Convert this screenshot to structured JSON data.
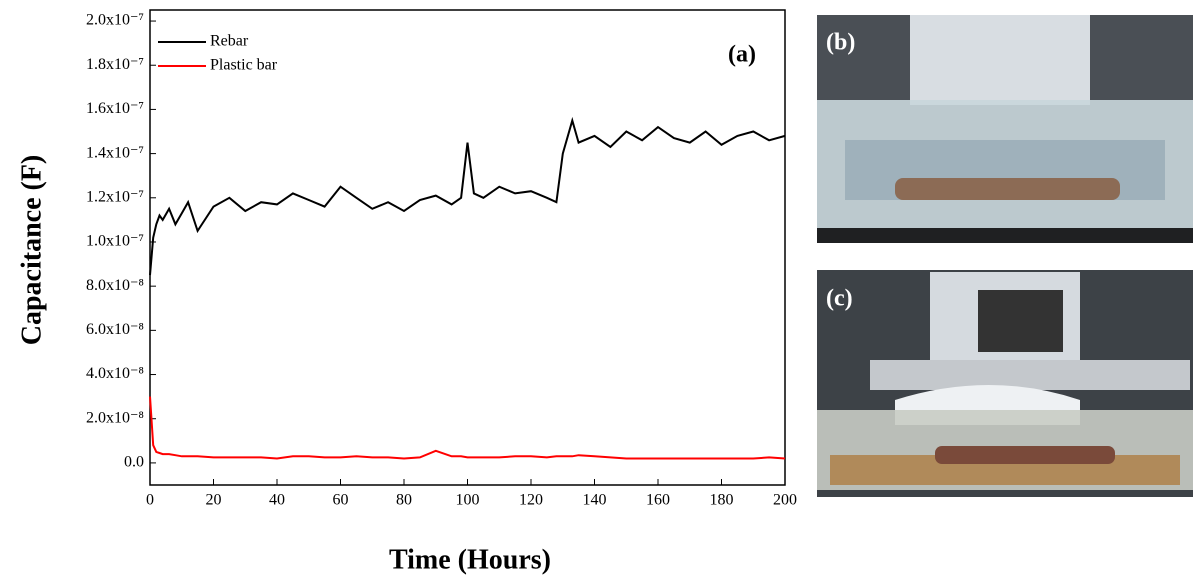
{
  "chart_data": {
    "type": "line",
    "panel_label": "(a)",
    "xlabel": "Time (Hours)",
    "ylabel": "Capacitance (F)",
    "x": [
      0,
      1,
      2,
      3,
      4,
      6,
      8,
      10,
      12,
      15,
      20,
      25,
      30,
      35,
      40,
      45,
      50,
      55,
      60,
      65,
      70,
      75,
      80,
      85,
      90,
      95,
      98,
      100,
      102,
      105,
      110,
      115,
      120,
      125,
      128,
      130,
      133,
      135,
      140,
      145,
      150,
      155,
      160,
      165,
      170,
      175,
      180,
      185,
      190,
      195,
      200
    ],
    "series": [
      {
        "name": "Rebar",
        "color": "#000000",
        "values": [
          8.5e-08,
          1.02e-07,
          1.08e-07,
          1.12e-07,
          1.1e-07,
          1.15e-07,
          1.08e-07,
          1.13e-07,
          1.18e-07,
          1.05e-07,
          1.16e-07,
          1.2e-07,
          1.14e-07,
          1.18e-07,
          1.17e-07,
          1.22e-07,
          1.19e-07,
          1.16e-07,
          1.25e-07,
          1.2e-07,
          1.15e-07,
          1.18e-07,
          1.14e-07,
          1.19e-07,
          1.21e-07,
          1.17e-07,
          1.2e-07,
          1.45e-07,
          1.22e-07,
          1.2e-07,
          1.25e-07,
          1.22e-07,
          1.23e-07,
          1.2e-07,
          1.18e-07,
          1.4e-07,
          1.55e-07,
          1.45e-07,
          1.48e-07,
          1.43e-07,
          1.5e-07,
          1.46e-07,
          1.52e-07,
          1.47e-07,
          1.45e-07,
          1.5e-07,
          1.44e-07,
          1.48e-07,
          1.5e-07,
          1.46e-07,
          1.48e-07
        ]
      },
      {
        "name": "Plastic bar",
        "color": "#ff0000",
        "values": [
          3e-08,
          8e-09,
          5e-09,
          4.5e-09,
          4e-09,
          4e-09,
          3.5e-09,
          3e-09,
          3e-09,
          3e-09,
          2.5e-09,
          2.5e-09,
          2.5e-09,
          2.5e-09,
          2e-09,
          3e-09,
          3e-09,
          2.5e-09,
          2.5e-09,
          3e-09,
          2.5e-09,
          2.5e-09,
          2e-09,
          2.5e-09,
          5.5e-09,
          3e-09,
          3e-09,
          2.5e-09,
          2.5e-09,
          2.5e-09,
          2.5e-09,
          3e-09,
          3e-09,
          2.5e-09,
          3e-09,
          3e-09,
          3e-09,
          3.5e-09,
          3e-09,
          2.5e-09,
          2e-09,
          2e-09,
          2e-09,
          2e-09,
          2e-09,
          2e-09,
          2e-09,
          2e-09,
          2e-09,
          2.5e-09,
          2e-09
        ]
      }
    ],
    "xlim": [
      0,
      200
    ],
    "xticks": [
      0,
      20,
      40,
      60,
      80,
      100,
      120,
      140,
      160,
      180,
      200
    ],
    "ylim": [
      -1e-08,
      2.05e-07
    ],
    "yticks": [
      {
        "value": 0,
        "label": "0.0"
      },
      {
        "value": 2e-08,
        "label": "2.0x10⁻⁸"
      },
      {
        "value": 4e-08,
        "label": "4.0x10⁻⁸"
      },
      {
        "value": 6e-08,
        "label": "6.0x10⁻⁸"
      },
      {
        "value": 8e-08,
        "label": "8.0x10⁻⁸"
      },
      {
        "value": 1e-07,
        "label": "1.0x10⁻⁷"
      },
      {
        "value": 1.2e-07,
        "label": "1.2x10⁻⁷"
      },
      {
        "value": 1.4e-07,
        "label": "1.4x10⁻⁷"
      },
      {
        "value": 1.6e-07,
        "label": "1.6x10⁻⁷"
      },
      {
        "value": 1.8e-07,
        "label": "1.8x10⁻⁷"
      },
      {
        "value": 2e-07,
        "label": "2.0x10⁻⁷"
      }
    ],
    "legend": "upper left",
    "photos": [
      "(b)",
      "(c)"
    ]
  }
}
